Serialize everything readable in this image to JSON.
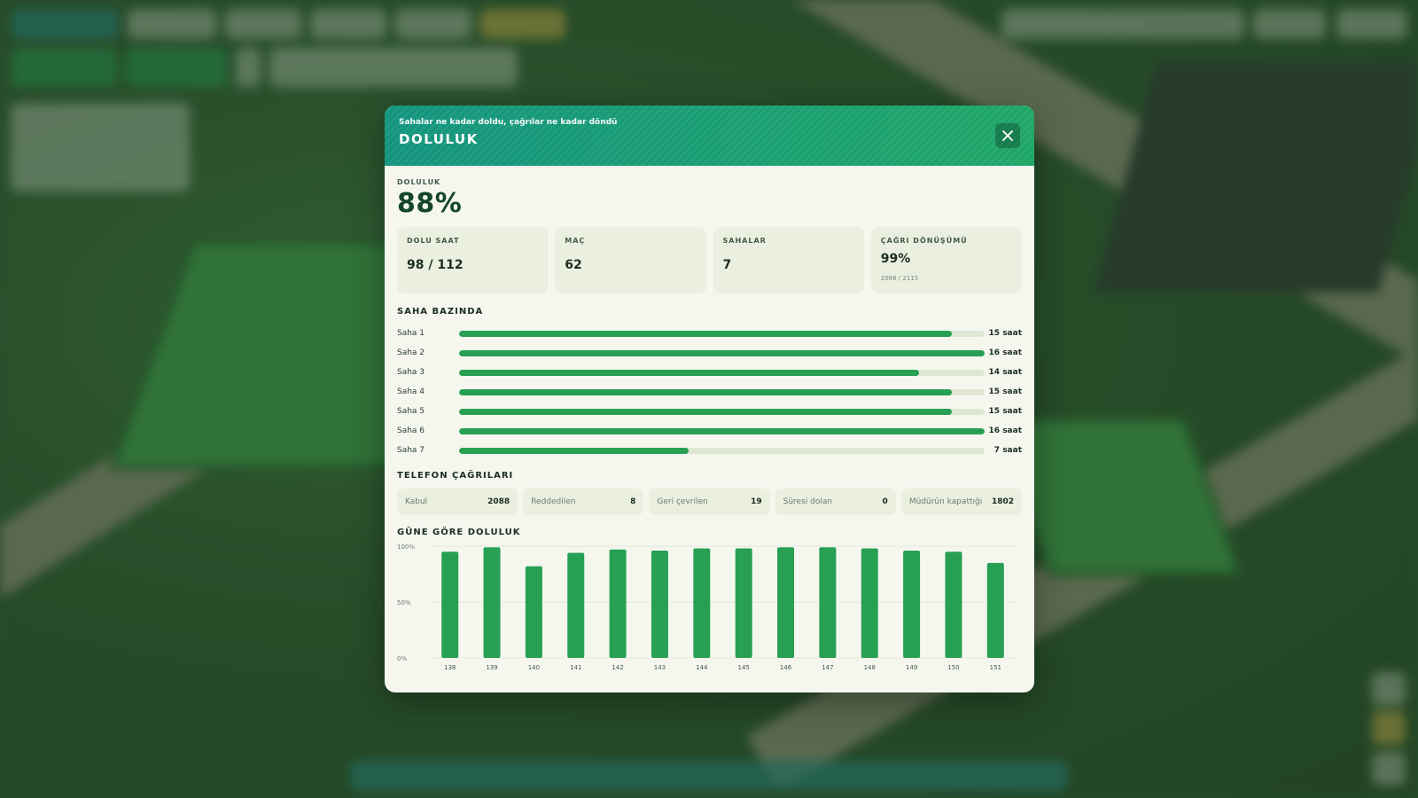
{
  "modal": {
    "subtitle": "Sahalar ne kadar doldu, çağrılar ne kadar döndü",
    "title": "DOLULUK",
    "close_icon": "close-icon"
  },
  "occupancy": {
    "label": "DOLULUK",
    "value": "88%"
  },
  "stats": [
    {
      "label": "DOLU SAAT",
      "value": "98 / 112"
    },
    {
      "label": "MAÇ",
      "value": "62"
    },
    {
      "label": "SAHALAR",
      "value": "7"
    },
    {
      "label": "ÇAĞRI DÖNÜŞÜMÜ",
      "value": "99%",
      "sub": "2088 / 2115"
    }
  ],
  "pitches": {
    "title": "SAHA BAZINDA",
    "items": [
      {
        "name": "Saha 1",
        "hours": "15 saat",
        "fill": 0.9375
      },
      {
        "name": "Saha 2",
        "hours": "16 saat",
        "fill": 1.0
      },
      {
        "name": "Saha 3",
        "hours": "14 saat",
        "fill": 0.875
      },
      {
        "name": "Saha 4",
        "hours": "15 saat",
        "fill": 0.9375
      },
      {
        "name": "Saha 5",
        "hours": "15 saat",
        "fill": 0.9375
      },
      {
        "name": "Saha 6",
        "hours": "16 saat",
        "fill": 1.0
      },
      {
        "name": "Saha 7",
        "hours": "7 saat",
        "fill": 0.4375
      }
    ]
  },
  "calls": {
    "title": "TELEFON ÇAĞRILARI",
    "items": [
      {
        "label": "Kabul",
        "value": "2088"
      },
      {
        "label": "Reddedilen",
        "value": "8"
      },
      {
        "label": "Geri çevrilen",
        "value": "19"
      },
      {
        "label": "Süresi dolan",
        "value": "0"
      },
      {
        "label": "Müdürün kapattığı",
        "value": "1802"
      }
    ]
  },
  "daily": {
    "title": "GÜNE GÖRE DOLULUK"
  },
  "colors": {
    "accent": "#27a053",
    "header_start": "#14957f",
    "header_end": "#1fa768",
    "panel": "#f5f7ef",
    "card": "#eaefe0"
  },
  "chart_data": {
    "type": "bar",
    "categories": [
      "138",
      "139",
      "140",
      "141",
      "142",
      "143",
      "144",
      "145",
      "146",
      "147",
      "148",
      "149",
      "150",
      "151"
    ],
    "values": [
      95,
      99,
      82,
      94,
      97,
      96,
      98,
      98,
      99,
      99,
      98,
      96,
      95,
      85
    ],
    "ylim": [
      0,
      100
    ],
    "yticks": [
      "0%",
      "50%",
      "100%"
    ],
    "grid": true,
    "title": "GÜNE GÖRE DOLULUK",
    "xlabel": "",
    "ylabel": ""
  }
}
